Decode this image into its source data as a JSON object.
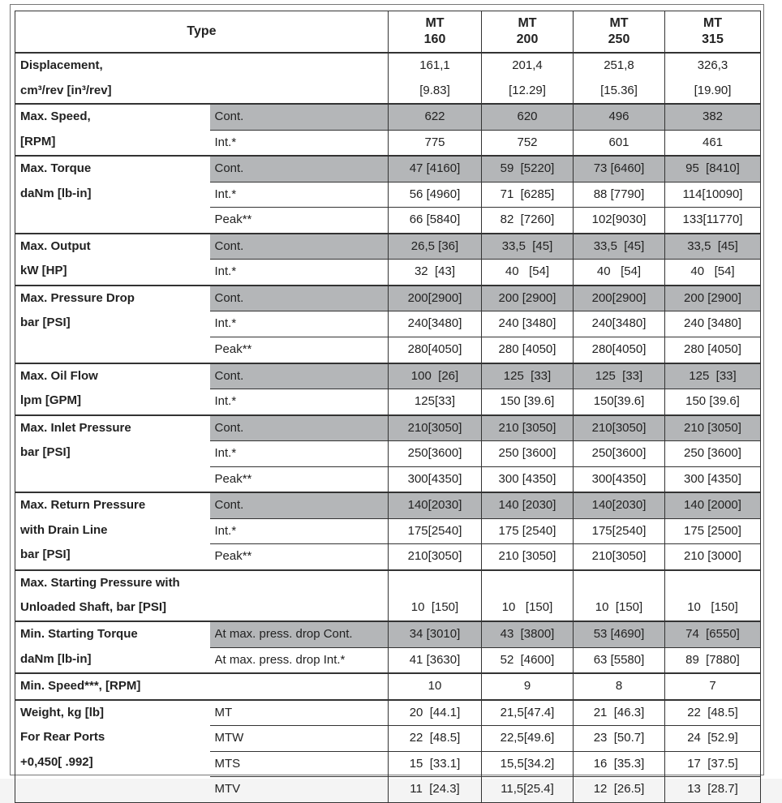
{
  "header": {
    "type_label": "Type",
    "models": [
      [
        "MT",
        "160"
      ],
      [
        "MT",
        "200"
      ],
      [
        "MT",
        "250"
      ],
      [
        "MT",
        "315"
      ]
    ]
  },
  "shade_color": "#b4b6b8",
  "groups": [
    {
      "label": [
        "Displacement,",
        " cm³/rev [in³/rev]"
      ],
      "span": true,
      "rows": [
        {
          "sub": "",
          "lines": 2,
          "values": [
            [
              "161,1",
              "[9.83]"
            ],
            [
              "201,4",
              "[12.29]"
            ],
            [
              "251,8",
              "[15.36]"
            ],
            [
              "326,3",
              "[19.90]"
            ]
          ]
        }
      ]
    },
    {
      "label": [
        "Max. Speed,",
        "[RPM]"
      ],
      "rows": [
        {
          "sub": "Cont.",
          "shaded": true,
          "values": [
            "622",
            "620",
            "496",
            "382"
          ]
        },
        {
          "sub": "Int.*",
          "values": [
            "775",
            "752",
            "601",
            "461"
          ]
        }
      ]
    },
    {
      "label": [
        "Max. Torque",
        "daNm [lb-in]"
      ],
      "rows": [
        {
          "sub": "Cont.",
          "shaded": true,
          "values": [
            "47 [4160]",
            "59  [5220]",
            "73 [6460]",
            "95  [8410]"
          ]
        },
        {
          "sub": "Int.*",
          "values": [
            "56 [4960]",
            "71  [6285]",
            "88 [7790]",
            "114[10090]"
          ]
        },
        {
          "sub": "Peak**",
          "values": [
            "66 [5840]",
            "82  [7260]",
            "102[9030]",
            "133[11770]"
          ]
        }
      ]
    },
    {
      "label": [
        "Max. Output",
        "kW [HP]"
      ],
      "rows": [
        {
          "sub": "Cont.",
          "shaded": true,
          "values": [
            "26,5 [36]",
            "33,5  [45]",
            "33,5  [45]",
            "33,5  [45]"
          ]
        },
        {
          "sub": "Int.*",
          "values": [
            "32  [43]",
            "40   [54]",
            "40   [54]",
            "40   [54]"
          ]
        }
      ]
    },
    {
      "label": [
        "Max. Pressure Drop",
        "bar [PSI]"
      ],
      "rows": [
        {
          "sub": "Cont.",
          "shaded": true,
          "values": [
            "200[2900]",
            "200 [2900]",
            "200[2900]",
            "200 [2900]"
          ]
        },
        {
          "sub": "Int.*",
          "values": [
            "240[3480]",
            "240 [3480]",
            "240[3480]",
            "240 [3480]"
          ]
        },
        {
          "sub": "Peak**",
          "values": [
            "280[4050]",
            "280 [4050]",
            "280[4050]",
            "280 [4050]"
          ]
        }
      ]
    },
    {
      "label": [
        "Max. Oil Flow",
        "lpm [GPM]"
      ],
      "rows": [
        {
          "sub": "Cont.",
          "shaded": true,
          "values": [
            "100  [26]",
            "125  [33]",
            "125  [33]",
            "125  [33]"
          ]
        },
        {
          "sub": "Int.*",
          "values": [
            "125[33]",
            "150 [39.6]",
            "150[39.6]",
            "150 [39.6]"
          ]
        }
      ]
    },
    {
      "label": [
        "Max. Inlet Pressure",
        "bar [PSI]"
      ],
      "rows": [
        {
          "sub": "Cont.",
          "shaded": true,
          "values": [
            "210[3050]",
            "210 [3050]",
            "210[3050]",
            "210 [3050]"
          ]
        },
        {
          "sub": "Int.*",
          "values": [
            "250[3600]",
            "250 [3600]",
            "250[3600]",
            "250 [3600]"
          ]
        },
        {
          "sub": "Peak**",
          "values": [
            "300[4350]",
            "300 [4350]",
            "300[4350]",
            "300 [4350]"
          ]
        }
      ]
    },
    {
      "label": [
        "Max. Return Pressure",
        "with Drain Line",
        "bar [PSI]"
      ],
      "rows": [
        {
          "sub": "Cont.",
          "shaded": true,
          "values": [
            "140[2030]",
            "140 [2030]",
            "140[2030]",
            "140 [2000]"
          ]
        },
        {
          "sub": "Int.*",
          "values": [
            "175[2540]",
            "175 [2540]",
            "175[2540]",
            "175 [2500]"
          ]
        },
        {
          "sub": "Peak**",
          "values": [
            "210[3050]",
            "210 [3050]",
            "210[3050]",
            "210 [3000]"
          ]
        }
      ]
    },
    {
      "label": [
        "Max. Starting Pressure with",
        "Unloaded Shaft, bar [PSI]"
      ],
      "span": true,
      "rows": [
        {
          "sub": "",
          "lines": 2,
          "bottom": true,
          "values": [
            "10  [150]",
            "10   [150]",
            "10  [150]",
            "10   [150]"
          ]
        }
      ]
    },
    {
      "label": [
        "Min. Starting Torque",
        "daNm [lb-in]"
      ],
      "rows": [
        {
          "sub": "At max. press. drop Cont.",
          "shaded": true,
          "values": [
            "34 [3010]",
            "43  [3800]",
            "53 [4690]",
            "74  [6550]"
          ]
        },
        {
          "sub": "At max. press. drop  Int.*",
          "values": [
            "41 [3630]",
            "52  [4600]",
            "63 [5580]",
            "89  [7880]"
          ]
        }
      ]
    },
    {
      "label": [
        "Min. Speed***, [RPM]"
      ],
      "span": true,
      "rows": [
        {
          "sub": "",
          "values": [
            "10",
            "9",
            "8",
            "7"
          ]
        }
      ]
    },
    {
      "label": [
        "Weight, kg [lb]",
        "For Rear Ports",
        "+0,450[ .992]"
      ],
      "rows": [
        {
          "sub": "MT",
          "values": [
            "20  [44.1]",
            "21,5[47.4]",
            "21  [46.3]",
            "22  [48.5]"
          ]
        },
        {
          "sub": "MTW",
          "values": [
            "22  [48.5]",
            "22,5[49.6]",
            "23  [50.7]",
            "24  [52.9]"
          ]
        },
        {
          "sub": "MTS",
          "values": [
            "15  [33.1]",
            "15,5[34.2]",
            "16  [35.3]",
            "17  [37.5]"
          ]
        },
        {
          "sub": "MTV",
          "values": [
            "11  [24.3]",
            "11,5[25.4]",
            "12  [26.5]",
            "13  [28.7]"
          ]
        }
      ]
    }
  ]
}
